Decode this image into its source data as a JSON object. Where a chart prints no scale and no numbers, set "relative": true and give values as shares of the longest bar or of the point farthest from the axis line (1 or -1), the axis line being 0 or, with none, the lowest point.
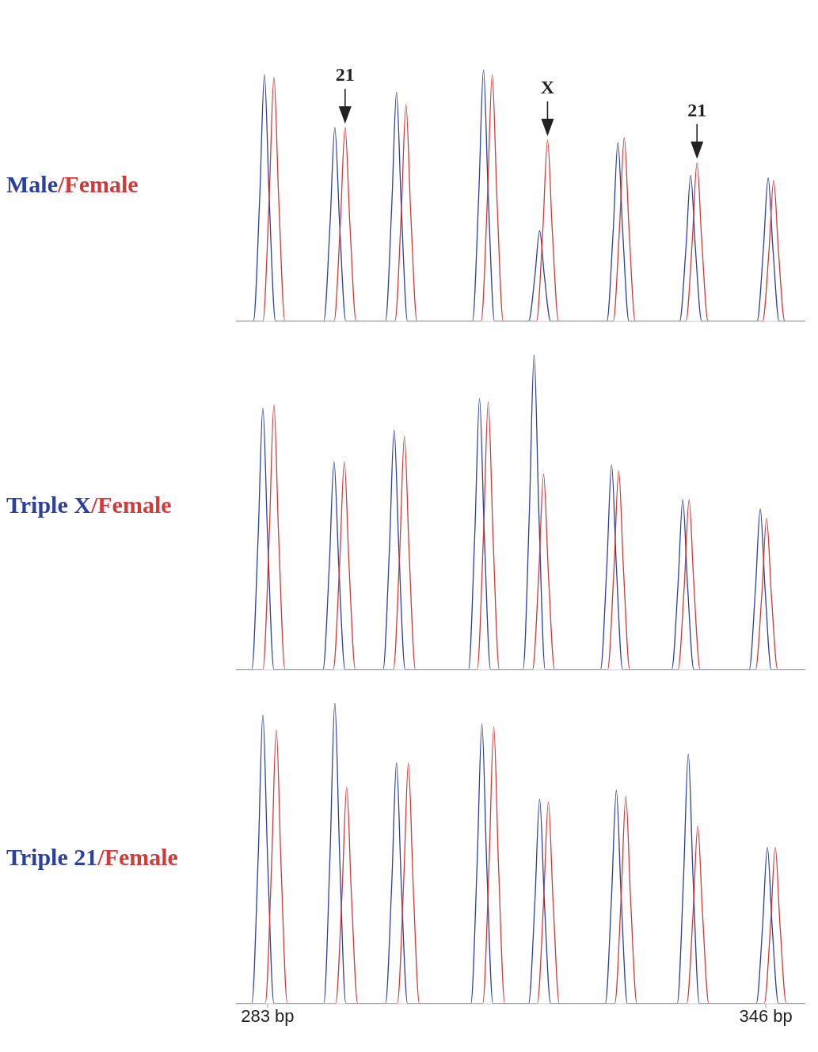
{
  "chart_data": [
    {
      "type": "line",
      "relative": true,
      "xlim": [
        279,
        351
      ],
      "tick_labels": false,
      "annotations": [
        "/",
        {
          "text": "21",
          "x": 292.8,
          "y": 0.77
        },
        {
          "text": "X",
          "x": 318.4,
          "y": 0.72
        },
        {
          "text": "21",
          "x": 337.3,
          "y": 0.63
        }
      ],
      "series": [
        {
          "name": "Male",
          "color": "#2b3f9e",
          "x": [
            279,
            281.2,
            282.0,
            282.6,
            283.2,
            284.0,
            290.1,
            290.9,
            291.5,
            292.1,
            292.9,
            297.9,
            298.7,
            299.3,
            299.9,
            300.7,
            308.9,
            309.7,
            310.3,
            310.9,
            311.7,
            316.0,
            316.8,
            317.4,
            318.0,
            318.8,
            325.9,
            326.7,
            327.3,
            327.9,
            328.7,
            335.1,
            335.9,
            336.5,
            337.1,
            337.9,
            344.9,
            345.7,
            346.3,
            346.9,
            347.7,
            351
          ],
          "values": [
            0,
            0,
            0.49,
            0.98,
            0.49,
            0,
            0,
            0.39,
            0.77,
            0.39,
            0,
            0,
            0.46,
            0.91,
            0.46,
            0,
            0,
            0.5,
            1,
            0.5,
            0,
            0,
            0.18,
            0.36,
            0.18,
            0,
            0,
            0.36,
            0.71,
            0.36,
            0,
            0,
            0.29,
            0.58,
            0.29,
            0,
            0,
            0.29,
            0.57,
            0.29,
            0,
            0
          ]
        },
        {
          "name": "Female",
          "color": "#d23a3a",
          "x": [
            279,
            282.4,
            283.2,
            283.8,
            284.4,
            285.2,
            291.4,
            292.2,
            292.8,
            293.4,
            294.2,
            299.1,
            299.9,
            300.5,
            301.1,
            301.9,
            310.0,
            310.8,
            311.4,
            312.0,
            312.8,
            317.0,
            317.8,
            318.4,
            319.0,
            319.8,
            326.7,
            327.5,
            328.1,
            328.7,
            329.5,
            335.9,
            336.7,
            337.3,
            337.9,
            338.7,
            345.6,
            346.4,
            347.0,
            347.6,
            348.4,
            351
          ],
          "values": [
            0,
            0,
            0.49,
            0.97,
            0.49,
            0,
            0,
            0.39,
            0.77,
            0.39,
            0,
            0,
            0.43,
            0.86,
            0.43,
            0,
            0,
            0.49,
            0.98,
            0.49,
            0,
            0,
            0.36,
            0.72,
            0.36,
            0,
            0,
            0.37,
            0.73,
            0.37,
            0,
            0,
            0.32,
            0.63,
            0.32,
            0,
            0,
            0.28,
            0.56,
            0.28,
            0,
            0
          ]
        }
      ]
    },
    {
      "type": "line",
      "relative": true,
      "xlim": [
        279,
        351
      ],
      "tick_labels": false,
      "annotations": [
        "/"
      ],
      "series": [
        {
          "name": "Triple X",
          "color": "#2b3f9e",
          "x": [
            279,
            281.0,
            281.8,
            282.4,
            283.0,
            283.8,
            290.0,
            290.8,
            291.4,
            292.0,
            292.8,
            297.6,
            298.4,
            299.0,
            299.6,
            300.4,
            308.4,
            309.2,
            309.8,
            310.4,
            311.2,
            315.3,
            316.1,
            316.7,
            317.3,
            318.1,
            325.1,
            325.9,
            326.5,
            327.1,
            327.9,
            334.1,
            334.9,
            335.5,
            336.1,
            336.9,
            343.9,
            344.7,
            345.3,
            345.9,
            346.7,
            351
          ],
          "values": [
            0,
            0,
            0.42,
            0.83,
            0.42,
            0,
            0,
            0.33,
            0.66,
            0.33,
            0,
            0,
            0.38,
            0.76,
            0.38,
            0,
            0,
            0.43,
            0.86,
            0.43,
            0,
            0,
            0.5,
            1,
            0.5,
            0,
            0,
            0.33,
            0.65,
            0.33,
            0,
            0,
            0.27,
            0.54,
            0.27,
            0,
            0,
            0.26,
            0.51,
            0.26,
            0,
            0
          ]
        },
        {
          "name": "Female",
          "color": "#d23a3a",
          "x": [
            279,
            282.4,
            283.2,
            283.8,
            284.4,
            285.2,
            291.3,
            292.1,
            292.7,
            293.3,
            294.1,
            298.9,
            299.7,
            300.3,
            300.9,
            301.7,
            309.5,
            310.3,
            310.9,
            311.5,
            312.3,
            316.5,
            317.3,
            317.9,
            318.5,
            319.3,
            326.0,
            326.8,
            327.4,
            328.0,
            328.8,
            334.9,
            335.7,
            336.3,
            336.9,
            337.7,
            344.7,
            345.5,
            346.1,
            346.7,
            347.5,
            351
          ],
          "values": [
            0,
            0,
            0.42,
            0.84,
            0.42,
            0,
            0,
            0.33,
            0.66,
            0.33,
            0,
            0,
            0.37,
            0.74,
            0.37,
            0,
            0,
            0.43,
            0.85,
            0.43,
            0,
            0,
            0.31,
            0.62,
            0.31,
            0,
            0,
            0.32,
            0.63,
            0.32,
            0,
            0,
            0.27,
            0.54,
            0.27,
            0,
            0,
            0.24,
            0.48,
            0.24,
            0,
            0
          ]
        }
      ]
    },
    {
      "type": "line",
      "relative": true,
      "xlim": [
        279,
        351
      ],
      "xticks": [
        {
          "value": 283,
          "label": "283 bp"
        },
        {
          "value": 346,
          "label": "346 bp"
        }
      ],
      "tick_labels": "x",
      "annotations": [
        "/"
      ],
      "series": [
        {
          "name": "Triple 21",
          "color": "#2b3f9e",
          "x": [
            279,
            281.0,
            281.8,
            282.4,
            283.0,
            283.8,
            290.1,
            290.9,
            291.5,
            292.1,
            292.9,
            297.9,
            298.7,
            299.3,
            299.9,
            300.7,
            308.7,
            309.5,
            310.1,
            310.7,
            311.5,
            316.0,
            316.8,
            317.4,
            318.0,
            318.8,
            325.7,
            326.5,
            327.1,
            327.7,
            328.5,
            334.8,
            335.6,
            336.2,
            336.8,
            337.6,
            344.8,
            345.6,
            346.2,
            346.8,
            347.6,
            351
          ],
          "values": [
            0,
            0,
            0.48,
            0.96,
            0.48,
            0,
            0,
            0.5,
            1,
            0.5,
            0,
            0,
            0.4,
            0.8,
            0.4,
            0,
            0,
            0.47,
            0.93,
            0.47,
            0,
            0,
            0.34,
            0.68,
            0.34,
            0,
            0,
            0.36,
            0.71,
            0.36,
            0,
            0,
            0.42,
            0.83,
            0.42,
            0,
            0,
            0.26,
            0.52,
            0.26,
            0,
            0
          ]
        },
        {
          "name": "Female",
          "color": "#d23a3a",
          "x": [
            279,
            282.7,
            283.5,
            284.1,
            284.7,
            285.5,
            291.6,
            292.4,
            293.0,
            293.6,
            294.4,
            299.4,
            300.2,
            300.8,
            301.4,
            302.2,
            310.2,
            311.0,
            311.6,
            312.2,
            313.0,
            317.1,
            317.9,
            318.5,
            319.1,
            319.9,
            326.9,
            327.7,
            328.3,
            328.9,
            329.7,
            336.0,
            336.8,
            337.4,
            338.0,
            338.8,
            345.8,
            346.6,
            347.2,
            347.8,
            348.6,
            351
          ],
          "values": [
            0,
            0,
            0.46,
            0.91,
            0.46,
            0,
            0,
            0.36,
            0.72,
            0.36,
            0,
            0,
            0.4,
            0.8,
            0.4,
            0,
            0,
            0.46,
            0.92,
            0.46,
            0,
            0,
            0.34,
            0.67,
            0.34,
            0,
            0,
            0.35,
            0.69,
            0.35,
            0,
            0,
            0.3,
            0.59,
            0.3,
            0,
            0,
            0.26,
            0.52,
            0.26,
            0,
            0
          ]
        }
      ]
    }
  ]
}
